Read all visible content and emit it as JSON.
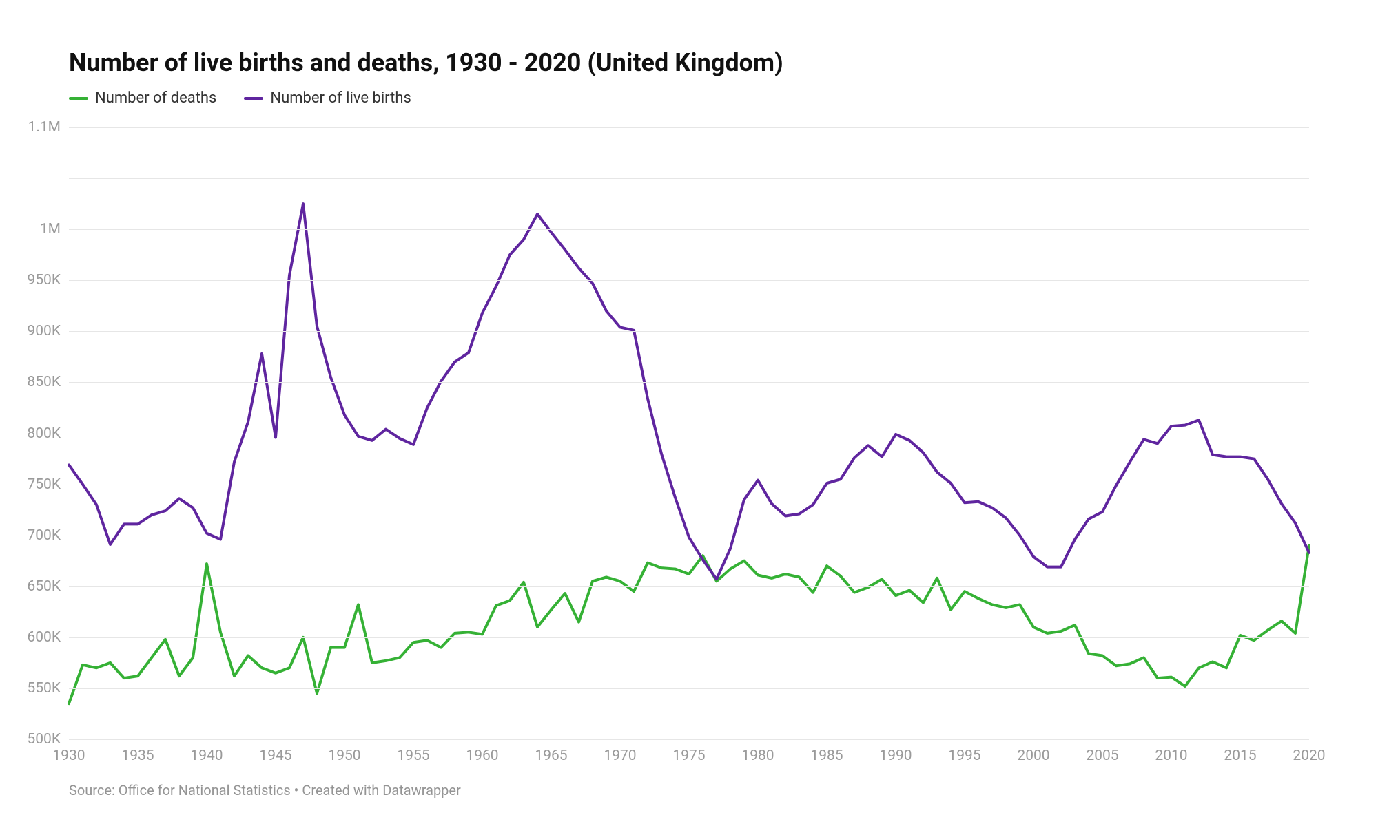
{
  "title": "Number of live births and deaths, 1930 - 2020 (United Kingdom)",
  "source": "Source: Office for National Statistics • Created with Datawrapper",
  "chart": {
    "type": "line",
    "background_color": "#ffffff",
    "grid_color": "#e6e6e6",
    "axis_label_color": "#9a9a9a",
    "title_fontsize": 36,
    "label_fontsize": 21,
    "line_width": 4,
    "x": {
      "min": 1930,
      "max": 2020,
      "tick_step": 5,
      "ticks": [
        1930,
        1935,
        1940,
        1945,
        1950,
        1955,
        1960,
        1965,
        1970,
        1975,
        1980,
        1985,
        1990,
        1995,
        2000,
        2005,
        2010,
        2015,
        2020
      ]
    },
    "y": {
      "min": 500000,
      "max": 1100000,
      "tick_step": 50000,
      "ticks": [
        500000,
        550000,
        600000,
        650000,
        700000,
        750000,
        800000,
        850000,
        900000,
        950000,
        1000000,
        1050000,
        1100000
      ],
      "tick_labels": [
        "500K",
        "550K",
        "600K",
        "650K",
        "700K",
        "750K",
        "800K",
        "850K",
        "900K",
        "950K",
        "1M",
        "",
        "1.1M"
      ]
    },
    "series": [
      {
        "id": "deaths",
        "label": "Number of deaths",
        "color": "#35b135",
        "years": [
          1930,
          1931,
          1932,
          1933,
          1934,
          1935,
          1936,
          1937,
          1938,
          1939,
          1940,
          1941,
          1942,
          1943,
          1944,
          1945,
          1946,
          1947,
          1948,
          1949,
          1950,
          1951,
          1952,
          1953,
          1954,
          1955,
          1956,
          1957,
          1958,
          1959,
          1960,
          1961,
          1962,
          1963,
          1964,
          1965,
          1966,
          1967,
          1968,
          1969,
          1970,
          1971,
          1972,
          1973,
          1974,
          1975,
          1976,
          1977,
          1978,
          1979,
          1980,
          1981,
          1982,
          1983,
          1984,
          1985,
          1986,
          1987,
          1988,
          1989,
          1990,
          1991,
          1992,
          1993,
          1994,
          1995,
          1996,
          1997,
          1998,
          1999,
          2000,
          2001,
          2002,
          2003,
          2004,
          2005,
          2006,
          2007,
          2008,
          2009,
          2010,
          2011,
          2012,
          2013,
          2014,
          2015,
          2016,
          2017,
          2018,
          2019,
          2020
        ],
        "values": [
          535000,
          573000,
          570000,
          575000,
          560000,
          562000,
          580000,
          598000,
          562000,
          580000,
          672000,
          605000,
          562000,
          582000,
          570000,
          565000,
          570000,
          600000,
          545000,
          590000,
          590000,
          632000,
          575000,
          577000,
          580000,
          595000,
          597000,
          590000,
          604000,
          605000,
          603000,
          631000,
          636000,
          654000,
          610000,
          627000,
          643000,
          615000,
          655000,
          659000,
          655000,
          645000,
          673000,
          668000,
          667000,
          662000,
          680000,
          655000,
          667000,
          675000,
          661000,
          658000,
          662000,
          659000,
          644000,
          670000,
          660000,
          644000,
          649000,
          657000,
          641000,
          646000,
          634000,
          658000,
          627000,
          645000,
          638000,
          632000,
          629000,
          632000,
          610000,
          604000,
          606000,
          612000,
          584000,
          582000,
          572000,
          574000,
          580000,
          560000,
          561000,
          552000,
          570000,
          576000,
          570000,
          602000,
          597000,
          607000,
          616000,
          604000,
          690000
        ]
      },
      {
        "id": "births",
        "label": "Number of live births",
        "color": "#5f259f",
        "years": [
          1930,
          1931,
          1932,
          1933,
          1934,
          1935,
          1936,
          1937,
          1938,
          1939,
          1940,
          1941,
          1942,
          1943,
          1944,
          1945,
          1946,
          1947,
          1948,
          1949,
          1950,
          1951,
          1952,
          1953,
          1954,
          1955,
          1956,
          1957,
          1958,
          1959,
          1960,
          1961,
          1962,
          1963,
          1964,
          1965,
          1966,
          1967,
          1968,
          1969,
          1970,
          1971,
          1972,
          1973,
          1974,
          1975,
          1976,
          1977,
          1978,
          1979,
          1980,
          1981,
          1982,
          1983,
          1984,
          1985,
          1986,
          1987,
          1988,
          1989,
          1990,
          1991,
          1992,
          1993,
          1994,
          1995,
          1996,
          1997,
          1998,
          1999,
          2000,
          2001,
          2002,
          2003,
          2004,
          2005,
          2006,
          2007,
          2008,
          2009,
          2010,
          2011,
          2012,
          2013,
          2014,
          2015,
          2016,
          2017,
          2018,
          2019,
          2020
        ],
        "values": [
          769000,
          750000,
          730000,
          691000,
          711000,
          711000,
          720000,
          724000,
          736000,
          727000,
          702000,
          696000,
          772000,
          811000,
          878000,
          796000,
          955000,
          1025000,
          905000,
          855000,
          818000,
          797000,
          793000,
          804000,
          795000,
          789000,
          825000,
          851000,
          870000,
          879000,
          918000,
          944000,
          975000,
          990000,
          1015000,
          997000,
          980000,
          962000,
          947000,
          920000,
          904000,
          901000,
          834000,
          780000,
          737000,
          698000,
          676000,
          657000,
          687000,
          735000,
          754000,
          731000,
          719000,
          721000,
          730000,
          751000,
          755000,
          776000,
          788000,
          777000,
          799000,
          793000,
          781000,
          762000,
          751000,
          732000,
          733000,
          727000,
          717000,
          700000,
          679000,
          669000,
          669000,
          696000,
          716000,
          723000,
          749000,
          772000,
          794000,
          790000,
          807000,
          808000,
          813000,
          779000,
          777000,
          777000,
          775000,
          755000,
          731000,
          712000,
          683000
        ]
      }
    ]
  }
}
